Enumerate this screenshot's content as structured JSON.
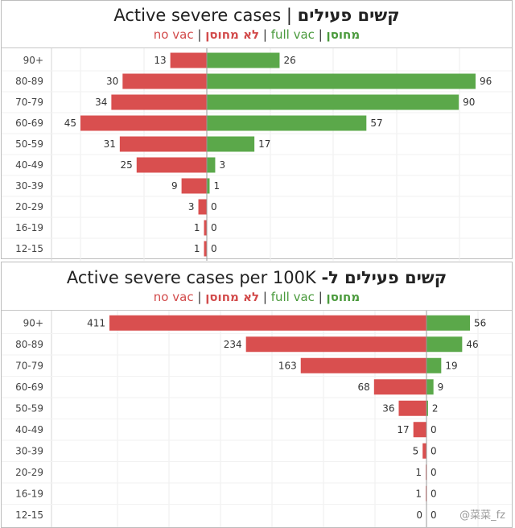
{
  "panels": [
    {
      "title_en": "Active severe cases",
      "title_sep": "|",
      "title_he": "קשים פעילים",
      "legend": {
        "no_vac_en": "no vac",
        "no_vac_he": "לא מחוסן",
        "full_vac_en": "full vac",
        "full_vac_he": "מחוסן",
        "sep": "|"
      }
    },
    {
      "title_en": "Active severe cases per 100K",
      "title_he": "קשים פעילים ל-",
      "legend": {
        "no_vac_en": "no vac",
        "no_vac_he": "לא מחוסן",
        "full_vac_en": "full vac",
        "full_vac_he": "מחוסן",
        "sep": "|"
      }
    }
  ],
  "watermark": "@菜菜_fz",
  "colors": {
    "no_vac": "#d94f4f",
    "full_vac": "#5ba84a",
    "axis": "#c7c7c7",
    "text": "#333333"
  },
  "chart_data": [
    {
      "type": "bar",
      "orientation": "horizontal",
      "layout": "diverging",
      "title": "Active severe cases | קשים פעילים",
      "categories": [
        "90+",
        "80-89",
        "70-79",
        "60-69",
        "50-59",
        "40-49",
        "30-39",
        "20-29",
        "16-19",
        "12-15"
      ],
      "series": [
        {
          "name": "no vac",
          "direction": "left",
          "color": "#d94f4f",
          "values": [
            13,
            30,
            34,
            45,
            31,
            25,
            9,
            3,
            1,
            1
          ]
        },
        {
          "name": "full vac",
          "direction": "right",
          "color": "#5ba84a",
          "values": [
            26,
            96,
            90,
            57,
            17,
            3,
            1,
            0,
            0,
            0
          ]
        }
      ],
      "grid": true
    },
    {
      "type": "bar",
      "orientation": "horizontal",
      "layout": "diverging",
      "title": "Active severe cases per 100K קשים פעילים ל-",
      "categories": [
        "90+",
        "80-89",
        "70-79",
        "60-69",
        "50-59",
        "40-49",
        "30-39",
        "20-29",
        "16-19",
        "12-15"
      ],
      "series": [
        {
          "name": "no vac",
          "direction": "left",
          "color": "#d94f4f",
          "values": [
            411,
            234,
            163,
            68,
            36,
            17,
            5,
            1,
            1,
            0
          ]
        },
        {
          "name": "full vac",
          "direction": "right",
          "color": "#5ba84a",
          "values": [
            56,
            46,
            19,
            9,
            2,
            0,
            0,
            0,
            0,
            0
          ]
        }
      ],
      "grid": true
    }
  ]
}
